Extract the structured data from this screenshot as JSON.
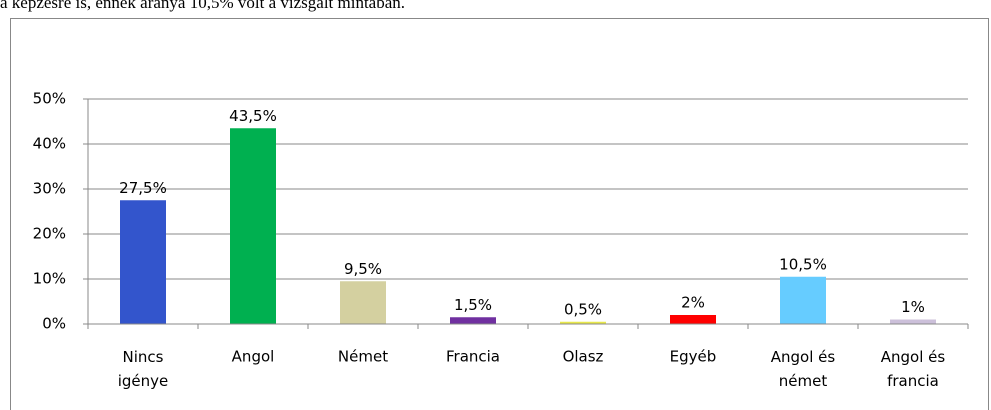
{
  "text": "a képzésre is, ennek aránya 10,5% volt a vizsgált mintában.",
  "chart_data": {
    "type": "bar",
    "categories": [
      "Nincs igénye",
      "Angol",
      "Német",
      "Francia",
      "Olasz",
      "Egyéb",
      "Angol és német",
      "Angol és francia"
    ],
    "values": [
      27.5,
      43.5,
      9.5,
      1.5,
      0.5,
      2,
      10.5,
      1
    ],
    "value_labels": [
      "27,5%",
      "43,5%",
      "9,5%",
      "1,5%",
      "0,5%",
      "2%",
      "10,5%",
      "1%"
    ],
    "colors": [
      "#3355cc",
      "#00b050",
      "#d4d0a0",
      "#7030a0",
      "#e8e84a",
      "#ff0000",
      "#66ccff",
      "#ccc0da"
    ],
    "ylim": [
      0,
      50
    ],
    "yticks": [
      {
        "value": 0,
        "label": "0%"
      },
      {
        "value": 10,
        "label": "10%"
      },
      {
        "value": 20,
        "label": "20%"
      },
      {
        "value": 30,
        "label": "30%"
      },
      {
        "value": 40,
        "label": "40%"
      },
      {
        "value": 50,
        "label": "50%"
      }
    ],
    "grid": true
  }
}
